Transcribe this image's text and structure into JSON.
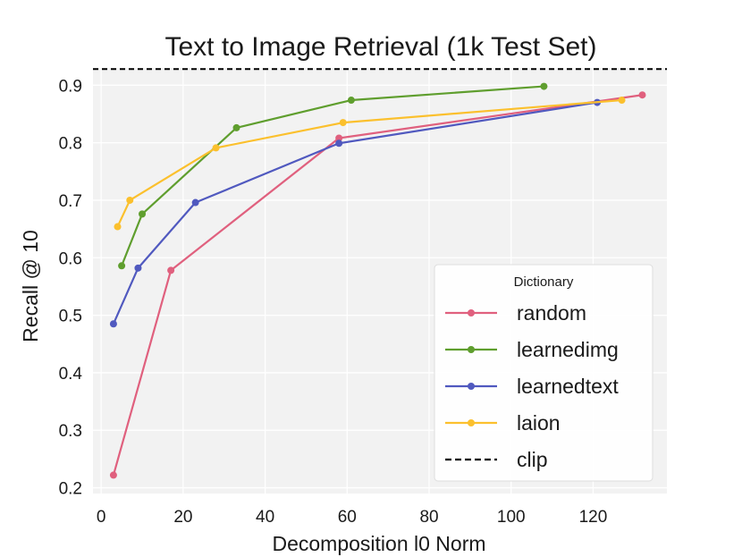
{
  "chart_data": {
    "type": "line",
    "title": "Text to Image Retrieval (1k Test Set)",
    "xlabel": "Decomposition l0 Norm",
    "ylabel": "Recall @ 10",
    "xlim": [
      -2,
      138
    ],
    "ylim": [
      0.19,
      0.93
    ],
    "xticks": [
      0,
      20,
      40,
      60,
      80,
      100,
      120
    ],
    "yticks": [
      0.2,
      0.3,
      0.4,
      0.5,
      0.6,
      0.7,
      0.8,
      0.9
    ],
    "grid": true,
    "legend": {
      "title": "Dictionary",
      "position": "lower-right"
    },
    "series": [
      {
        "name": "random",
        "color": "#e0607e",
        "x": [
          3,
          17,
          58,
          132
        ],
        "y": [
          0.222,
          0.578,
          0.808,
          0.883
        ]
      },
      {
        "name": "learnedimg",
        "color": "#5f9e2e",
        "x": [
          5,
          10,
          33,
          61,
          108
        ],
        "y": [
          0.586,
          0.676,
          0.826,
          0.874,
          0.898
        ]
      },
      {
        "name": "learnedtext",
        "color": "#5059bf",
        "x": [
          3,
          9,
          23,
          58,
          121
        ],
        "y": [
          0.485,
          0.582,
          0.696,
          0.799,
          0.87
        ]
      },
      {
        "name": "laion",
        "color": "#fbc02d",
        "x": [
          4,
          7,
          28,
          59,
          127
        ],
        "y": [
          0.654,
          0.7,
          0.791,
          0.835,
          0.874
        ]
      }
    ],
    "reference_line": {
      "name": "clip",
      "y": 0.928,
      "style": "dashed",
      "color": "#000000"
    }
  }
}
